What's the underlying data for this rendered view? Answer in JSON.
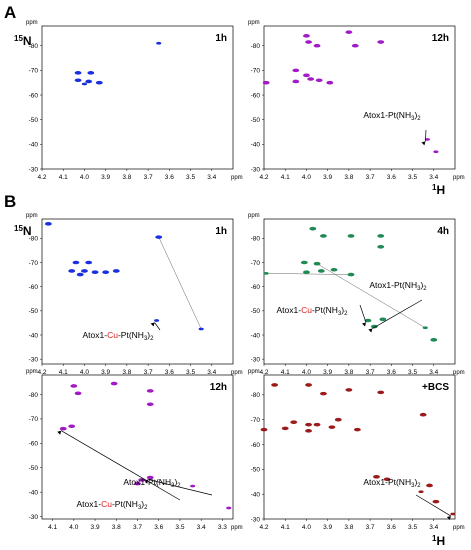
{
  "figure": {
    "section_a_label": "A",
    "section_b_label": "B",
    "nucleus_y": "15N",
    "nucleus_x": "1H",
    "axis_unit": "ppm"
  },
  "chart_data": [
    {
      "type": "scatter",
      "panel": "A-left",
      "title": "1h",
      "xlabel": "ppm",
      "ylabel": "ppm",
      "xlim": [
        4.2,
        3.3
      ],
      "ylim": [
        -30,
        -88
      ],
      "x_ticks": [
        "4.2",
        "4.1",
        "4.0",
        "3.9",
        "3.8",
        "3.7",
        "3.6",
        "3.5",
        "3.4"
      ],
      "y_ticks": [
        "-80",
        "-70",
        "-60",
        "-50",
        "-40",
        "-30"
      ],
      "series": [
        {
          "color": "#1a2fe0",
          "points": [
            [
              4.03,
              -69.0
            ],
            [
              3.97,
              -69.0
            ],
            [
              4.03,
              -66.0
            ],
            [
              3.98,
              -65.5
            ],
            [
              3.93,
              -65.0
            ],
            [
              4.0,
              -64.5
            ],
            [
              3.65,
              -81.0
            ]
          ]
        }
      ],
      "annotations": []
    },
    {
      "type": "scatter",
      "panel": "A-right",
      "title": "12h",
      "xlabel": "ppm",
      "ylabel": "ppm",
      "xlim": [
        4.2,
        3.3
      ],
      "ylim": [
        -30,
        -88
      ],
      "x_ticks": [
        "4.2",
        "4.1",
        "4.0",
        "3.9",
        "3.8",
        "3.7",
        "3.6",
        "3.5",
        "3.4"
      ],
      "y_ticks": [
        "-80",
        "-70",
        "-60",
        "-50",
        "-40",
        "-30"
      ],
      "series": [
        {
          "color": "#a01ac6",
          "points": [
            [
              4.0,
              -84.0
            ],
            [
              3.99,
              -81.5
            ],
            [
              3.95,
              -80.0
            ],
            [
              3.8,
              -85.5
            ],
            [
              3.77,
              -80.0
            ],
            [
              3.65,
              -81.5
            ],
            [
              4.05,
              -70.0
            ],
            [
              4.0,
              -68.0
            ],
            [
              3.98,
              -66.5
            ],
            [
              3.94,
              -66.0
            ],
            [
              4.05,
              -65.5
            ],
            [
              3.89,
              -65.0
            ],
            [
              4.19,
              -65.0
            ],
            [
              3.43,
              -42.0
            ],
            [
              3.39,
              -37.0
            ]
          ]
        }
      ],
      "annotations": [
        {
          "text": "Atox1-Pt(NH3)2",
          "parts": [
            [
              "Atox1-Pt(NH",
              ""
            ],
            [
              "3",
              "sub"
            ],
            [
              ")",
              ""
            ],
            [
              "2",
              "sub"
            ]
          ]
        }
      ]
    },
    {
      "type": "scatter",
      "panel": "B-top-left",
      "title": "1h",
      "xlabel": "ppm",
      "ylabel": "ppm",
      "xlim": [
        4.2,
        3.3
      ],
      "ylim": [
        -28,
        -88
      ],
      "x_ticks": [
        "4.2",
        "4.1",
        "4.0",
        "3.9",
        "3.8",
        "3.7",
        "3.6",
        "3.5",
        "3.4"
      ],
      "y_ticks": [
        "-80",
        "-70",
        "-60",
        "-50",
        "-40",
        "-30"
      ],
      "series": [
        {
          "color": "#1a2fe0",
          "points": [
            [
              4.04,
              -70.0
            ],
            [
              3.98,
              -70.0
            ],
            [
              4.06,
              -66.5
            ],
            [
              4.0,
              -66.5
            ],
            [
              3.95,
              -66.0
            ],
            [
              4.02,
              -65.0
            ],
            [
              3.9,
              -66.0
            ],
            [
              3.85,
              -66.5
            ],
            [
              3.65,
              -80.5
            ],
            [
              4.17,
              -86.0
            ],
            [
              3.66,
              -46.0
            ],
            [
              3.45,
              -42.5
            ]
          ]
        }
      ],
      "annotations": [
        {
          "text": "Atox1-Cu-Pt(NH3)2",
          "parts": [
            [
              "Atox1-",
              ""
            ],
            [
              "Cu",
              "red"
            ],
            [
              "-Pt(NH",
              ""
            ],
            [
              "3",
              "sub"
            ],
            [
              ")",
              ""
            ],
            [
              "2",
              "sub"
            ]
          ]
        }
      ]
    },
    {
      "type": "scatter",
      "panel": "B-top-right",
      "title": "4h",
      "xlabel": "ppm",
      "ylabel": "ppm",
      "xlim": [
        4.2,
        3.3
      ],
      "ylim": [
        -28,
        -88
      ],
      "x_ticks": [
        "4.2",
        "4.1",
        "4.0",
        "3.9",
        "3.8",
        "3.7",
        "3.6",
        "3.5",
        "3.4"
      ],
      "y_ticks": [
        "-80",
        "-70",
        "-60",
        "-50",
        "-40",
        "-30"
      ],
      "series": [
        {
          "color": "#1f8a53",
          "points": [
            [
              4.01,
              -70.0
            ],
            [
              3.95,
              -69.5
            ],
            [
              3.93,
              -66.5
            ],
            [
              4.0,
              -66.0
            ],
            [
              3.87,
              -67.0
            ],
            [
              3.97,
              -84.0
            ],
            [
              3.92,
              -81.0
            ],
            [
              3.79,
              -81.0
            ],
            [
              3.65,
              -81.0
            ],
            [
              3.65,
              -76.5
            ],
            [
              3.71,
              -46.0
            ],
            [
              3.64,
              -46.5
            ],
            [
              3.68,
              -43.5
            ],
            [
              3.4,
              -38.0
            ],
            [
              3.79,
              -65.0
            ],
            [
              4.19,
              -65.5
            ],
            [
              3.44,
              -43.0
            ]
          ]
        }
      ],
      "annotations": [
        {
          "text": "Atox1-Pt(NH3)2",
          "parts": [
            [
              "Atox1-Pt(NH",
              ""
            ],
            [
              "3",
              "sub"
            ],
            [
              ")",
              ""
            ],
            [
              "2",
              "sub"
            ]
          ]
        },
        {
          "text": "Atox1-Cu-Pt(NH3)2",
          "parts": [
            [
              "Atox1-",
              ""
            ],
            [
              "Cu",
              "red"
            ],
            [
              "-Pt(NH",
              ""
            ],
            [
              "3",
              "sub"
            ],
            [
              ")",
              ""
            ],
            [
              "2",
              "sub"
            ]
          ]
        }
      ]
    },
    {
      "type": "scatter",
      "panel": "B-bottom-left",
      "title": "12h",
      "xlabel": "ppm",
      "ylabel": "ppm",
      "xlim": [
        4.15,
        3.25
      ],
      "ylim": [
        -29,
        -88
      ],
      "x_ticks": [
        "4.1",
        "4.0",
        "3.9",
        "3.8",
        "3.7",
        "3.6",
        "3.5",
        "3.4",
        "3.3"
      ],
      "y_ticks": [
        "-80",
        "-70",
        "-60",
        "-50",
        "-40",
        "-30"
      ],
      "series": [
        {
          "color": "#a01ac6",
          "points": [
            [
              4.0,
              -83.5
            ],
            [
              3.98,
              -80.5
            ],
            [
              3.81,
              -84.5
            ],
            [
              3.64,
              -81.5
            ],
            [
              3.64,
              -76.0
            ],
            [
              4.01,
              -67.0
            ],
            [
              4.05,
              -66.0
            ],
            [
              3.68,
              -45.0
            ],
            [
              3.64,
              -46.0
            ],
            [
              3.7,
              -43.5
            ],
            [
              3.44,
              -42.5
            ],
            [
              3.27,
              -33.5
            ]
          ]
        }
      ],
      "annotations": [
        {
          "text": "Atox1-Pt(NH3)2",
          "parts": [
            [
              "Atox1-Pt(NH",
              ""
            ],
            [
              "3",
              "sub"
            ],
            [
              ")",
              ""
            ],
            [
              "2",
              "sub"
            ]
          ]
        },
        {
          "text": "Atox1-Cu-Pt(NH3)2",
          "parts": [
            [
              "Atox1-",
              ""
            ],
            [
              "Cu",
              "red"
            ],
            [
              "-Pt(NH",
              ""
            ],
            [
              "3",
              "sub"
            ],
            [
              ")",
              ""
            ],
            [
              "2",
              "sub"
            ]
          ]
        }
      ]
    },
    {
      "type": "scatter",
      "panel": "B-bottom-right",
      "title": "+BCS",
      "xlabel": "ppm",
      "ylabel": "ppm",
      "xlim": [
        4.2,
        3.3
      ],
      "ylim": [
        -30,
        -88
      ],
      "x_ticks": [
        "4.2",
        "4.1",
        "4.0",
        "3.9",
        "3.8",
        "3.7",
        "3.6",
        "3.5",
        "3.4"
      ],
      "y_ticks": [
        "-80",
        "-70",
        "-60",
        "-50",
        "-40",
        "-30"
      ],
      "series": [
        {
          "color": "#9b1b1b",
          "points": [
            [
              4.15,
              -84.0
            ],
            [
              3.99,
              -84.0
            ],
            [
              3.92,
              -80.5
            ],
            [
              3.8,
              -82.0
            ],
            [
              3.65,
              -81.0
            ],
            [
              4.06,
              -69.0
            ],
            [
              3.99,
              -68.0
            ],
            [
              4.1,
              -66.5
            ],
            [
              3.95,
              -68.0
            ],
            [
              3.88,
              -67.0
            ],
            [
              3.76,
              -66.0
            ],
            [
              4.2,
              -66.0
            ],
            [
              3.45,
              -72.0
            ],
            [
              3.99,
              -65.5
            ],
            [
              3.85,
              -70.0
            ],
            [
              3.67,
              -47.0
            ],
            [
              3.62,
              -46.0
            ],
            [
              3.42,
              -43.5
            ],
            [
              3.39,
              -37.0
            ],
            [
              3.31,
              -32.0
            ],
            [
              3.46,
              -41.0
            ]
          ]
        }
      ],
      "annotations": [
        {
          "text": "Atox1-Pt(NH3)2",
          "parts": [
            [
              "Atox1-Pt(NH",
              ""
            ],
            [
              "3",
              "sub"
            ],
            [
              ")",
              ""
            ],
            [
              "2",
              "sub"
            ]
          ]
        }
      ]
    }
  ]
}
